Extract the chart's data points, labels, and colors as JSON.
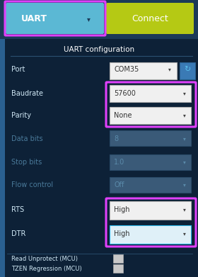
{
  "bg_dark": "#0d2137",
  "bg_top": "#1b3a57",
  "uart_btn_color": "#5bb8d4",
  "connect_btn_color": "#b5c914",
  "highlight_magenta": "#e040fb",
  "highlight_cyan": "#29b6e8",
  "dropdown_active_top": "#f0f0f0",
  "dropdown_active_bot": "#d8d8d8",
  "dropdown_disabled_color": "#3a5a78",
  "text_white": "#ffffff",
  "text_dark": "#333333",
  "text_disabled_val": "#5a8aaa",
  "text_label_white": "#d0e8f5",
  "title": "UART configuration",
  "uart_label": "UART",
  "connect_label": "Connect",
  "fields": [
    "Port",
    "Baudrate",
    "Parity",
    "Data bits",
    "Stop bits",
    "Flow control",
    "RTS",
    "DTR"
  ],
  "values": [
    "COM35",
    "57600",
    "None",
    "8",
    "1.0",
    "Off",
    "High",
    "High"
  ],
  "disabled_fields": [
    3,
    4,
    5
  ],
  "bottom_labels": [
    "Read Unprotect (MCU)",
    "TZEN Regression (MCU)"
  ],
  "left_bar_color": "#2a6090",
  "refresh_box_color": "#3a7ab5",
  "refresh_icon_color": "#5abfec"
}
